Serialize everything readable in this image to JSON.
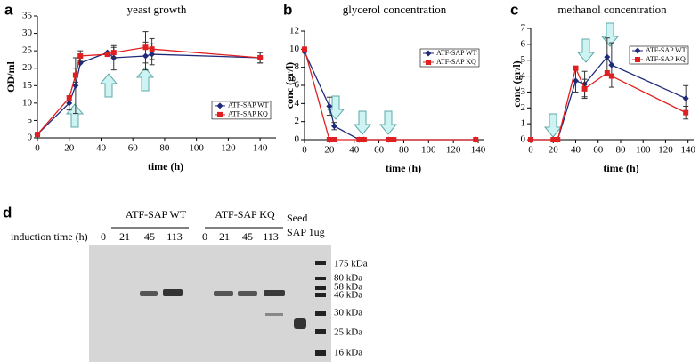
{
  "chart_data": [
    {
      "type": "line",
      "panel": "a",
      "title": "yeast growth",
      "xlabel": "time (h)",
      "ylabel": "OD/ml",
      "x": [
        0,
        20,
        24,
        27,
        44,
        48,
        68,
        72,
        140
      ],
      "series": [
        {
          "name": "ATF-SAP WT",
          "color": "#1f2a7a",
          "marker": "diamond",
          "values": [
            1,
            10,
            15,
            21.5,
            24.5,
            23,
            23.5,
            24,
            23
          ],
          "errors": [
            null,
            2,
            8,
            null,
            null,
            3.5,
            4,
            3,
            1.5
          ]
        },
        {
          "name": "ATF-SAP KQ",
          "color": "#e02020",
          "marker": "square",
          "values": [
            1,
            11.5,
            18,
            23.5,
            24,
            24.5,
            26,
            25.5,
            23
          ],
          "errors": [
            null,
            null,
            2,
            1.5,
            null,
            1.5,
            4.5,
            3,
            1.5
          ]
        }
      ],
      "xlim": [
        0,
        150
      ],
      "xticks": [
        0,
        20,
        40,
        60,
        80,
        100,
        120,
        140
      ],
      "ylim": [
        0,
        35
      ],
      "yticks": [
        0,
        5,
        10,
        15,
        20,
        25,
        30,
        35
      ],
      "legend": "center-right"
    },
    {
      "type": "line",
      "panel": "b",
      "title": "glycerol concentration",
      "xlabel": "time (h)",
      "ylabel": "conc (gr/l)",
      "x": [
        0,
        20,
        24,
        44,
        48,
        68,
        72,
        138
      ],
      "series": [
        {
          "name": "ATF-SAP WT",
          "color": "#1f2a7a",
          "marker": "diamond",
          "values": [
            9.7,
            3.7,
            1.5,
            0,
            0,
            0,
            0,
            0
          ],
          "errors": [
            null,
            1,
            0.4,
            null,
            null,
            null,
            null,
            null
          ]
        },
        {
          "name": "ATF-SAP KQ",
          "color": "#e02020",
          "marker": "square",
          "values": [
            10,
            0,
            0,
            0,
            0,
            0,
            0,
            0
          ],
          "errors": [
            null,
            null,
            null,
            null,
            null,
            null,
            null,
            null
          ]
        }
      ],
      "xlim": [
        0,
        145
      ],
      "xticks": [
        0,
        20,
        40,
        60,
        80,
        100,
        120,
        140
      ],
      "ylim": [
        0,
        12
      ],
      "yticks": [
        0,
        2,
        4,
        6,
        8,
        10,
        12
      ],
      "legend": "upper-right"
    },
    {
      "type": "line",
      "panel": "c",
      "title": "methanol concentration",
      "xlabel": "time (h)",
      "ylabel": "conc (gr/l)",
      "x": [
        0,
        20,
        24,
        40,
        48,
        68,
        72,
        138
      ],
      "series": [
        {
          "name": "ATF-SAP WT",
          "color": "#1f2a7a",
          "marker": "diamond",
          "values": [
            0,
            0,
            0,
            3.7,
            3.5,
            5.2,
            4.7,
            2.6
          ],
          "errors": [
            null,
            null,
            null,
            0.7,
            0.8,
            1.2,
            1.4,
            0.8
          ]
        },
        {
          "name": "ATF-SAP KQ",
          "color": "#e02020",
          "marker": "square",
          "values": [
            0,
            0,
            0,
            4.5,
            3.2,
            4.2,
            4.0,
            1.7
          ],
          "errors": [
            null,
            null,
            null,
            null,
            0.6,
            null,
            null,
            0.4
          ]
        }
      ],
      "xlim": [
        0,
        145
      ],
      "xticks": [
        0,
        20,
        40,
        60,
        80,
        100,
        120,
        140
      ],
      "ylim": [
        0,
        7
      ],
      "yticks": [
        0,
        1,
        2,
        3,
        4,
        5,
        6,
        7
      ],
      "legend": "upper-right"
    }
  ],
  "blot": {
    "panel": "d",
    "groups": [
      "ATF-SAP WT",
      "ATF-SAP KQ"
    ],
    "seed": [
      "Seed",
      "SAP 1ug"
    ],
    "row_label": "induction time (h)",
    "lanes": [
      "0",
      "21",
      "45",
      "113",
      "0",
      "21",
      "45",
      "113"
    ],
    "markers": [
      "175 kDa",
      "80 kDa",
      "58 kDa",
      "46 kDa",
      "30 kDa",
      "25 kDa",
      "16 kDa"
    ]
  }
}
